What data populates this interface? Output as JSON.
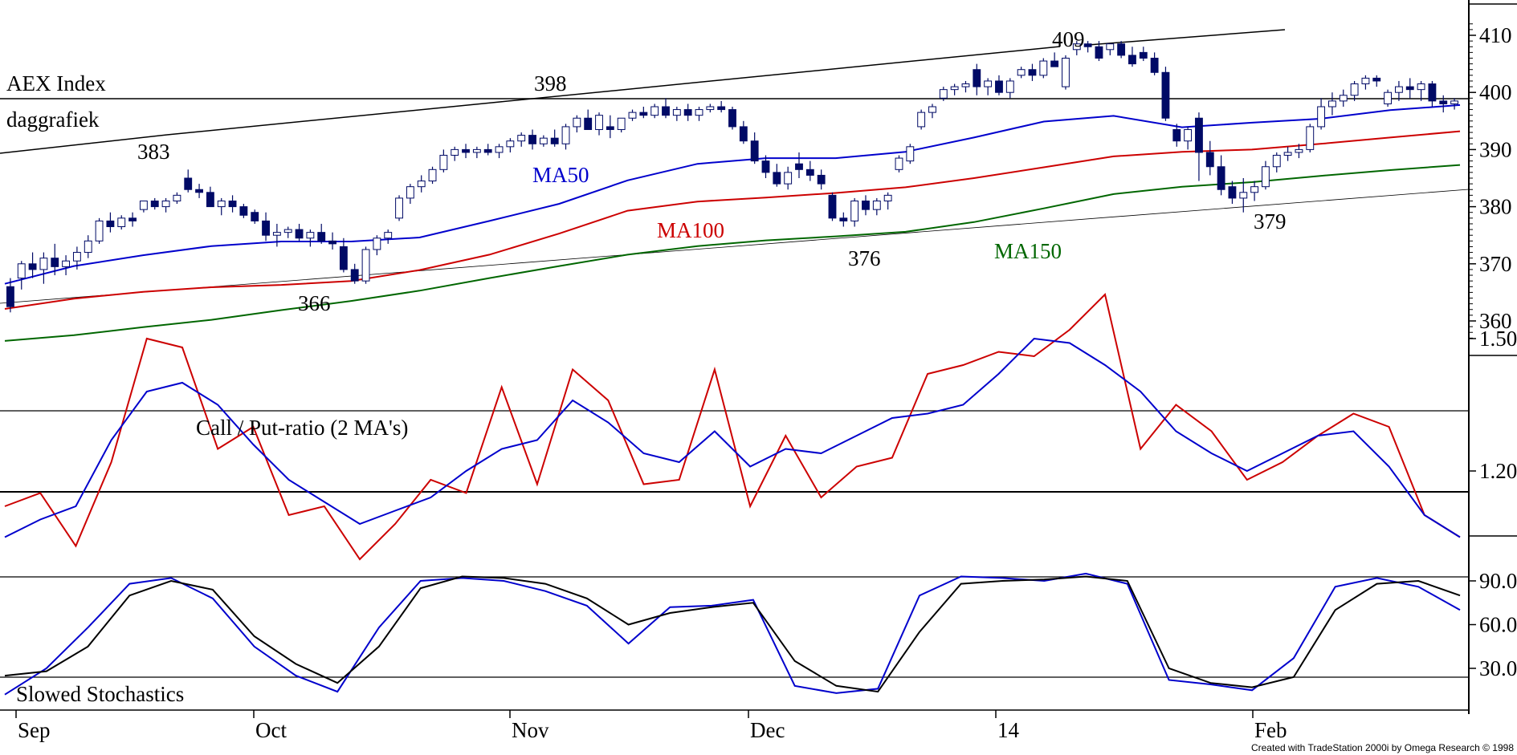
{
  "chart_data": [
    {
      "type": "candlestick",
      "title": "AEX Index",
      "subtitle": "daggrafiek",
      "x_labels": [
        "Sep",
        "Oct",
        "Nov",
        "Dec",
        "14",
        "Feb"
      ],
      "y_ticks": [
        360,
        370,
        380,
        390,
        400,
        410
      ],
      "ylim": [
        355,
        413
      ],
      "annotations": [
        {
          "text": "383",
          "value": 383
        },
        {
          "text": "366",
          "value": 366
        },
        {
          "text": "398",
          "value": 398
        },
        {
          "text": "376",
          "value": 376
        },
        {
          "text": "409",
          "value": 409
        },
        {
          "text": "379",
          "value": 379
        }
      ],
      "series": [
        {
          "name": "MA50",
          "color": "#0000cc",
          "values": [
            366.5,
            369.6,
            371.5,
            373.1,
            373.9,
            373.9,
            374.6,
            377.5,
            380.5,
            384.6,
            387.5,
            388.5,
            388.5,
            389.6,
            392.1,
            394.9,
            395.9,
            393.9,
            394.7,
            395.4,
            396.9,
            397.8
          ]
        },
        {
          "name": "MA100",
          "color": "#cc0000",
          "values": [
            362.1,
            363.9,
            365.1,
            365.9,
            366.3,
            367.0,
            368.9,
            371.6,
            375.3,
            379.3,
            380.9,
            381.6,
            382.4,
            383.4,
            385.0,
            386.9,
            388.8,
            389.6,
            390.0,
            391.0,
            392.1,
            393.2
          ]
        },
        {
          "name": "MA150",
          "color": "#006600",
          "values": [
            356.5,
            357.5,
            358.9,
            360.2,
            361.9,
            363.5,
            365.3,
            367.5,
            369.6,
            371.6,
            373.1,
            374.1,
            374.8,
            375.6,
            377.3,
            379.7,
            382.2,
            383.5,
            384.3,
            385.4,
            386.4,
            387.3
          ]
        }
      ],
      "series_x": [
        0,
        0.0475,
        0.095,
        0.142,
        0.19,
        0.238,
        0.285,
        0.333,
        0.381,
        0.428,
        0.476,
        0.523,
        0.571,
        0.619,
        0.666,
        0.714,
        0.762,
        0.809,
        0.857,
        0.904,
        0.952,
        1.0
      ],
      "candles": [
        [
          366,
          367.5,
          361.5,
          362.5
        ],
        [
          367.5,
          370.5,
          365.5,
          370.0
        ],
        [
          370.0,
          372.0,
          367.5,
          369.0
        ],
        [
          369.0,
          372.0,
          366.5,
          371.0
        ],
        [
          371.0,
          373.5,
          368.0,
          369.5
        ],
        [
          369.5,
          371.5,
          368.0,
          370.5
        ],
        [
          370.5,
          373.0,
          369.0,
          372.0
        ],
        [
          372.0,
          375.0,
          371.0,
          374.0
        ],
        [
          374.0,
          378.0,
          373.5,
          377.5
        ],
        [
          377.5,
          379.0,
          375.5,
          376.5
        ],
        [
          376.5,
          378.5,
          376.0,
          378.0
        ],
        [
          378.0,
          379.0,
          376.5,
          377.5
        ],
        [
          379.5,
          381.0,
          379.0,
          381.0
        ],
        [
          381.0,
          381.5,
          379.5,
          380.0
        ],
        [
          380.0,
          381.5,
          379.0,
          381.0
        ],
        [
          381.0,
          382.5,
          380.5,
          382.0
        ],
        [
          385.0,
          386.5,
          382.5,
          383.0
        ],
        [
          383.0,
          384.0,
          381.5,
          382.5
        ],
        [
          382.5,
          383.5,
          380.0,
          380.0
        ],
        [
          380.0,
          381.5,
          378.5,
          381.0
        ],
        [
          381.0,
          382.0,
          379.0,
          380.0
        ],
        [
          380.0,
          380.5,
          378.0,
          378.5
        ],
        [
          379.0,
          379.5,
          377.0,
          377.5
        ],
        [
          377.5,
          379.0,
          374.0,
          375.0
        ],
        [
          375.0,
          377.0,
          373.0,
          375.5
        ],
        [
          375.5,
          376.5,
          374.5,
          376.0
        ],
        [
          376.0,
          377.0,
          374.0,
          374.5
        ],
        [
          374.5,
          376.0,
          373.0,
          375.5
        ],
        [
          375.5,
          377.0,
          373.5,
          374.0
        ],
        [
          374.0,
          375.5,
          372.5,
          373.5
        ],
        [
          373.0,
          374.5,
          368.5,
          369.0
        ],
        [
          369.0,
          370.0,
          366.5,
          367.0
        ],
        [
          367.0,
          373.0,
          366.5,
          372.5
        ],
        [
          372.5,
          375.0,
          371.5,
          374.5
        ],
        [
          374.5,
          376.0,
          373.5,
          375.5
        ],
        [
          378.0,
          382.0,
          377.5,
          381.5
        ],
        [
          381.5,
          384.0,
          380.5,
          383.5
        ],
        [
          383.5,
          385.5,
          382.5,
          384.5
        ],
        [
          384.5,
          387.0,
          384.0,
          386.5
        ],
        [
          386.5,
          390.0,
          386.0,
          389.0
        ],
        [
          389.0,
          390.5,
          388.0,
          390.0
        ],
        [
          390.0,
          391.0,
          388.5,
          389.5
        ],
        [
          389.5,
          390.5,
          388.5,
          390.0
        ],
        [
          390.0,
          391.0,
          389.0,
          389.5
        ],
        [
          389.5,
          391.0,
          388.5,
          390.5
        ],
        [
          390.5,
          392.0,
          389.5,
          391.5
        ],
        [
          391.5,
          393.0,
          390.5,
          392.5
        ],
        [
          392.5,
          393.5,
          390.0,
          391.0
        ],
        [
          391.0,
          392.5,
          390.5,
          392.0
        ],
        [
          392.0,
          393.5,
          390.5,
          391.0
        ],
        [
          391.0,
          394.5,
          390.0,
          394.0
        ],
        [
          394.0,
          396.0,
          393.0,
          395.5
        ],
        [
          395.5,
          397.0,
          393.5,
          393.5
        ],
        [
          393.5,
          396.5,
          392.5,
          396.0
        ],
        [
          394.0,
          396.0,
          392.0,
          393.5
        ],
        [
          393.5,
          395.5,
          393.0,
          395.5
        ],
        [
          395.5,
          397.0,
          395.0,
          396.5
        ],
        [
          396.5,
          397.5,
          395.5,
          396.0
        ],
        [
          396.0,
          398.0,
          395.5,
          397.5
        ],
        [
          397.5,
          399.0,
          395.5,
          396.0
        ],
        [
          396.0,
          397.5,
          395.0,
          397.0
        ],
        [
          397.0,
          398.0,
          395.0,
          396.0
        ],
        [
          396.0,
          397.5,
          395.0,
          397.0
        ],
        [
          397.0,
          398.0,
          396.5,
          397.5
        ],
        [
          397.5,
          398.5,
          396.5,
          397.0
        ],
        [
          397.0,
          397.5,
          393.5,
          394.0
        ],
        [
          394.0,
          395.0,
          391.0,
          391.5
        ],
        [
          391.5,
          393.0,
          387.5,
          388.0
        ],
        [
          388.0,
          389.0,
          385.0,
          386.0
        ],
        [
          386.0,
          387.5,
          383.5,
          384.0
        ],
        [
          384.0,
          387.0,
          383.0,
          386.0
        ],
        [
          387.5,
          389.5,
          385.0,
          386.5
        ],
        [
          386.5,
          388.0,
          384.5,
          385.5
        ],
        [
          385.5,
          386.5,
          383.0,
          384.0
        ],
        [
          382.0,
          382.5,
          377.5,
          378.0
        ],
        [
          378.0,
          379.0,
          376.5,
          377.5
        ],
        [
          377.5,
          381.5,
          376.5,
          381.0
        ],
        [
          381.0,
          382.0,
          378.5,
          379.5
        ],
        [
          379.5,
          381.5,
          378.5,
          381.0
        ],
        [
          381.0,
          382.5,
          379.5,
          382.0
        ],
        [
          386.5,
          389.0,
          386.0,
          388.5
        ],
        [
          388.0,
          391.0,
          387.5,
          390.5
        ],
        [
          394.0,
          397.0,
          393.5,
          396.5
        ],
        [
          396.5,
          398.0,
          395.5,
          397.5
        ],
        [
          399.0,
          401.0,
          398.5,
          400.5
        ],
        [
          400.5,
          401.5,
          399.5,
          401.0
        ],
        [
          401.0,
          402.0,
          400.0,
          401.5
        ],
        [
          404.0,
          405.0,
          399.5,
          401.0
        ],
        [
          401.0,
          402.5,
          399.5,
          402.0
        ],
        [
          402.0,
          403.0,
          399.5,
          400.0
        ],
        [
          400.0,
          402.5,
          399.0,
          402.0
        ],
        [
          403.0,
          404.5,
          402.5,
          404.0
        ],
        [
          404.0,
          405.0,
          402.0,
          403.0
        ],
        [
          403.0,
          406.0,
          402.5,
          405.5
        ],
        [
          405.5,
          407.0,
          404.5,
          404.5
        ],
        [
          401.0,
          406.5,
          400.5,
          406.0
        ],
        [
          407.5,
          409.0,
          406.5,
          408.5
        ],
        [
          408.5,
          409.0,
          407.0,
          408.0
        ],
        [
          408.0,
          409.0,
          405.5,
          406.0
        ],
        [
          407.5,
          408.5,
          406.5,
          408.5
        ],
        [
          408.5,
          409.0,
          406.0,
          406.5
        ],
        [
          406.5,
          408.0,
          404.5,
          405.0
        ],
        [
          407.0,
          408.0,
          405.5,
          406.0
        ],
        [
          406.0,
          407.0,
          403.0,
          403.5
        ],
        [
          403.5,
          404.5,
          395.0,
          395.5
        ],
        [
          393.5,
          394.5,
          390.5,
          391.5
        ],
        [
          391.5,
          394.0,
          390.0,
          393.5
        ],
        [
          395.5,
          396.5,
          384.5,
          389.5
        ],
        [
          389.5,
          391.5,
          385.5,
          387.0
        ],
        [
          387.0,
          389.0,
          382.0,
          383.0
        ],
        [
          383.5,
          384.5,
          380.5,
          381.5
        ],
        [
          381.5,
          385.0,
          379.0,
          382.5
        ],
        [
          382.5,
          384.5,
          381.0,
          383.5
        ],
        [
          383.5,
          388.0,
          383.0,
          387.0
        ],
        [
          387.0,
          389.5,
          386.0,
          389.0
        ],
        [
          389.0,
          390.5,
          388.0,
          389.5
        ],
        [
          389.5,
          391.0,
          388.5,
          390.0
        ],
        [
          390.0,
          394.5,
          389.5,
          394.0
        ],
        [
          394.0,
          399.0,
          393.5,
          397.5
        ],
        [
          397.5,
          400.0,
          396.0,
          398.5
        ],
        [
          398.5,
          400.5,
          397.5,
          399.5
        ],
        [
          399.5,
          402.0,
          398.5,
          401.5
        ],
        [
          401.5,
          403.0,
          400.5,
          402.5
        ],
        [
          402.5,
          403.0,
          401.0,
          402.0
        ],
        [
          398.0,
          400.5,
          397.5,
          400.0
        ],
        [
          400.0,
          402.0,
          398.5,
          401.0
        ],
        [
          401.0,
          402.5,
          399.0,
          400.5
        ],
        [
          400.5,
          402.0,
          398.5,
          401.5
        ],
        [
          401.5,
          402.0,
          397.5,
          398.5
        ],
        [
          398.5,
          399.5,
          396.5,
          398.0
        ],
        [
          398.0,
          399.0,
          397.0,
          398.5
        ]
      ]
    },
    {
      "type": "line",
      "title": "Call / Put-ratio (2 MA's)",
      "y_ticks": [
        1.2,
        1.5
      ],
      "y_tick_labels": [
        "1.20",
        "1.50"
      ],
      "ylim": [
        0.9,
        1.65
      ],
      "series": [
        {
          "name": "",
          "color": "#cc0000",
          "values": [
            1.12,
            1.15,
            1.03,
            1.22,
            1.5,
            1.48,
            1.25,
            1.3,
            1.1,
            1.12,
            1.0,
            1.08,
            1.18,
            1.15,
            1.39,
            1.17,
            1.43,
            1.36,
            1.17,
            1.18,
            1.43,
            1.12,
            1.28,
            1.14,
            1.21,
            1.23,
            1.42,
            1.44,
            1.47,
            1.46,
            1.52,
            1.6,
            1.25,
            1.35,
            1.29,
            1.18,
            1.22,
            1.28,
            1.33,
            1.3,
            1.1,
            1.05
          ]
        },
        {
          "name": "",
          "color": "#0000cc",
          "values": [
            1.05,
            1.09,
            1.12,
            1.27,
            1.38,
            1.4,
            1.35,
            1.26,
            1.18,
            1.13,
            1.08,
            1.11,
            1.14,
            1.2,
            1.25,
            1.27,
            1.36,
            1.31,
            1.24,
            1.22,
            1.29,
            1.21,
            1.25,
            1.24,
            1.28,
            1.32,
            1.33,
            1.35,
            1.42,
            1.5,
            1.49,
            1.44,
            1.38,
            1.29,
            1.24,
            1.2,
            1.24,
            1.28,
            1.29,
            1.21,
            1.1,
            1.05
          ]
        }
      ]
    },
    {
      "type": "line",
      "title": "Slowed Stochastics",
      "y_ticks": [
        30,
        60,
        90
      ],
      "y_tick_labels": [
        "30.0",
        "60.0",
        "90.0"
      ],
      "ylim": [
        5,
        110
      ],
      "x_labels": [
        "Sep",
        "Oct",
        "Nov",
        "Dec",
        "14",
        "Feb"
      ],
      "series": [
        {
          "name": "",
          "color": "#0000cc",
          "values": [
            12,
            30,
            58,
            88,
            92,
            78,
            45,
            25,
            14,
            58,
            90,
            92,
            90,
            83,
            73,
            47,
            72,
            73,
            77,
            18,
            13,
            16,
            80,
            93,
            92,
            90,
            95,
            88,
            22,
            19,
            15,
            37,
            86,
            92,
            86,
            70
          ]
        },
        {
          "name": "",
          "color": "#000000",
          "values": [
            25,
            28,
            45,
            80,
            90,
            84,
            52,
            33,
            20,
            45,
            85,
            93,
            92,
            88,
            78,
            60,
            68,
            72,
            75,
            35,
            18,
            14,
            55,
            88,
            90,
            91,
            93,
            90,
            30,
            20,
            17,
            24,
            70,
            88,
            90,
            80
          ]
        }
      ]
    }
  ],
  "footer": {
    "credit": "Created with TradeStation 2000i by Omega Research © 1998"
  }
}
